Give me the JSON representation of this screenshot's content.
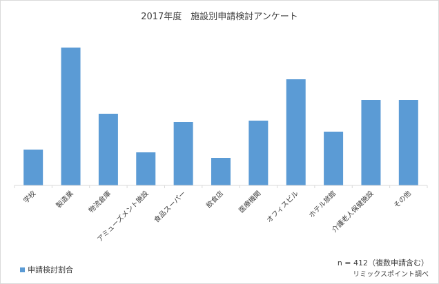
{
  "chart_data": {
    "type": "bar",
    "title": "2017年度　施設別申請検討アンケート",
    "categories": [
      "学校",
      "製造業",
      "物流倉庫",
      "アミューズメント施設",
      "食品スーパー",
      "飲食店",
      "医療機関",
      "オフィスビル",
      "ホテル旅館",
      "介護老人保健施設",
      "その他"
    ],
    "series": [
      {
        "name": "申請検討割合",
        "values": [
          26,
          100,
          52,
          24,
          46,
          20,
          47,
          77,
          39,
          62,
          62
        ]
      }
    ],
    "ylim": [
      0,
      103
    ],
    "grid": false,
    "legend": "bottom-left",
    "color": "#5b9bd5"
  },
  "notes": {
    "sample": "n = 412（複数申請含む）",
    "source": "リミックスポイント調べ"
  }
}
